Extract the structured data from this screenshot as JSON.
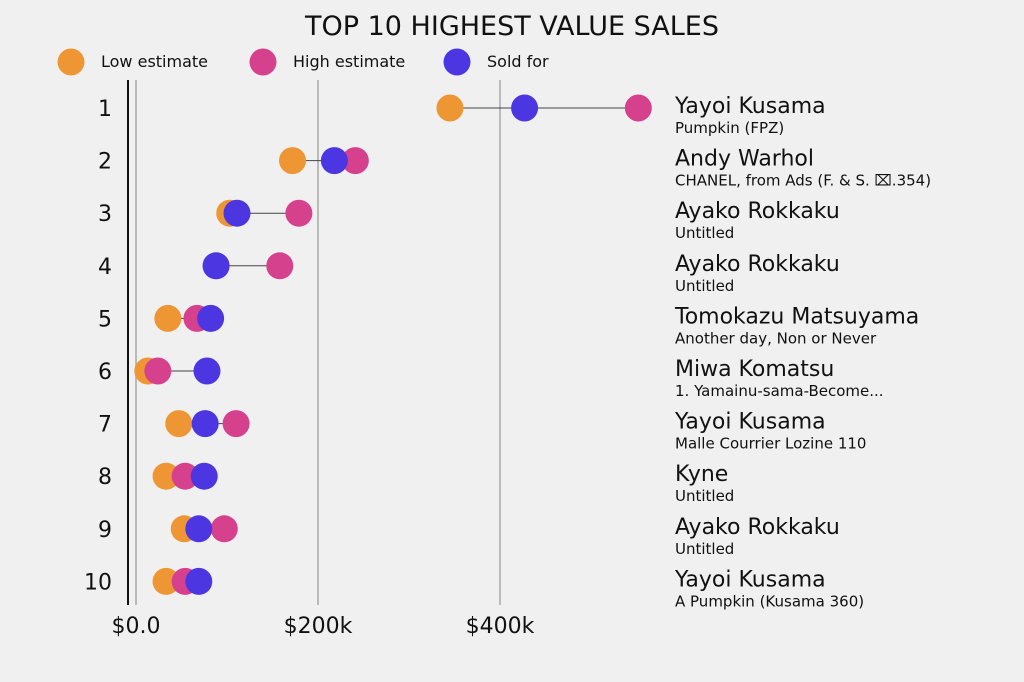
{
  "chart_data": {
    "type": "scatter",
    "title": "TOP 10 HIGHEST VALUE SALES",
    "legend_position": "top",
    "x_ticks": [
      "$0.0",
      "$200k",
      "$400k"
    ],
    "x_tick_values": [
      0,
      200000,
      400000
    ],
    "xlim": [
      -10000,
      550000
    ],
    "grid": true,
    "series": [
      {
        "name": "Low estimate",
        "color": "#ee9633",
        "values": [
          345000,
          172000,
          103000,
          88000,
          35000,
          13000,
          47000,
          33000,
          53000,
          33000
        ]
      },
      {
        "name": "High estimate",
        "color": "#d6418e",
        "values": [
          552000,
          241000,
          179000,
          158000,
          67000,
          24000,
          110000,
          54000,
          97000,
          54000
        ]
      },
      {
        "name": "Sold for",
        "color": "#4b36e2",
        "values": [
          427000,
          218000,
          111000,
          88000,
          82000,
          78000,
          76000,
          75000,
          69000,
          69000
        ]
      }
    ],
    "rows": [
      {
        "rank": "1",
        "artist": "Yayoi Kusama",
        "work": "Pumpkin (FPZ)"
      },
      {
        "rank": "2",
        "artist": "Andy Warhol",
        "work": "CHANEL, from Ads (F. & S. ⌧.354)"
      },
      {
        "rank": "3",
        "artist": "Ayako Rokkaku",
        "work": "Untitled"
      },
      {
        "rank": "4",
        "artist": "Ayako Rokkaku",
        "work": "Untitled"
      },
      {
        "rank": "5",
        "artist": "Tomokazu Matsuyama",
        "work": "Another day, Non or Never"
      },
      {
        "rank": "6",
        "artist": "Miwa Komatsu",
        "work": "1. Yamainu-sama-Become..."
      },
      {
        "rank": "7",
        "artist": "Yayoi Kusama",
        "work": "Malle Courrier Lozine 110"
      },
      {
        "rank": "8",
        "artist": "Kyne",
        "work": "Untitled"
      },
      {
        "rank": "9",
        "artist": "Ayako Rokkaku",
        "work": "Untitled"
      },
      {
        "rank": "10",
        "artist": "Yayoi Kusama",
        "work": "A Pumpkin (Kusama 360)"
      }
    ]
  }
}
